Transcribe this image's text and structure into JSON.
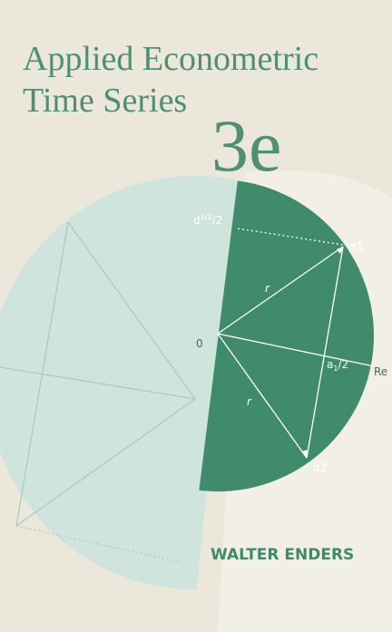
{
  "cover": {
    "title_lines": [
      "Applied Econometric",
      "Time Series"
    ],
    "edition": "3e",
    "author": "WALTER ENDERS",
    "diagram": {
      "origin": "0",
      "radius_labels": [
        "r",
        "r"
      ],
      "root_labels": [
        "α1",
        "α2"
      ],
      "half_label": {
        "base": "d",
        "sup": "1/2",
        "rest": "/2"
      },
      "real_part_label": {
        "base": "a",
        "sub": "1",
        "rest": "/2"
      },
      "axis_label": "Re"
    }
  }
}
